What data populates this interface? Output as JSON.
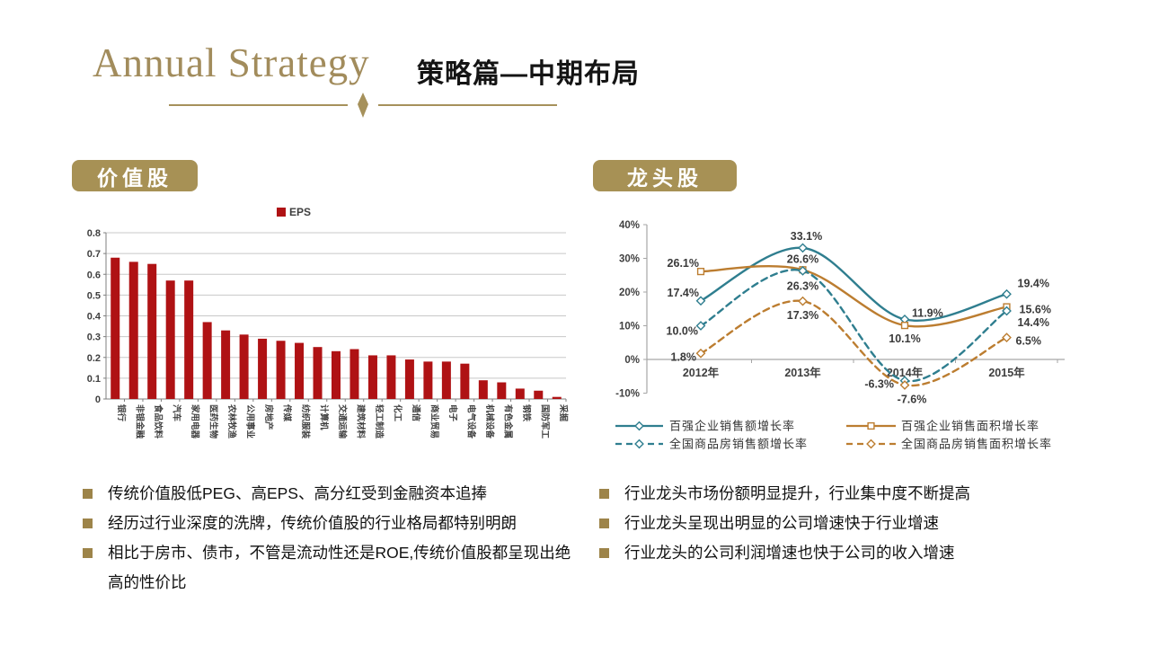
{
  "slide": {
    "title_en": "Annual Strategy",
    "title_zh": "策略篇—中期布局"
  },
  "sections": {
    "value": {
      "badge": "价值股",
      "bullets": [
        "传统价值股低PEG、高EPS、高分红受到金融资本追捧",
        "经历过行业深度的洗牌，传统价值股的行业格局都特别明朗",
        "相比于房市、债市，不管是流动性还是ROE,传统价值股都呈现出绝高的性价比"
      ]
    },
    "leader": {
      "badge": "龙头股",
      "bullets": [
        "行业龙头市场份额明显提升，行业集中度不断提高",
        "行业龙头呈现出明显的公司增速快于行业增速",
        "行业龙头的公司利润增速也快于公司的收入增速"
      ]
    }
  },
  "chart_data": [
    {
      "type": "bar",
      "legend": "EPS",
      "categories": [
        "银行",
        "非银金融",
        "食品饮料",
        "汽车",
        "家用电器",
        "医药生物",
        "农林牧渔",
        "公用事业",
        "房地产",
        "传媒",
        "纺织服装",
        "计算机",
        "交通运输",
        "建筑材料",
        "轻工制造",
        "化工",
        "通信",
        "商业贸易",
        "电子",
        "电气设备",
        "机械设备",
        "有色金属",
        "钢铁",
        "国防军工",
        "采掘"
      ],
      "values": [
        0.68,
        0.66,
        0.65,
        0.57,
        0.57,
        0.37,
        0.33,
        0.31,
        0.29,
        0.28,
        0.27,
        0.25,
        0.23,
        0.24,
        0.21,
        0.21,
        0.19,
        0.18,
        0.18,
        0.17,
        0.09,
        0.08,
        0.05,
        0.04,
        0.01
      ],
      "ylim": [
        0,
        0.8
      ],
      "ytick_step": 0.1,
      "grid": "horizontal"
    },
    {
      "type": "line",
      "x": [
        "2012年",
        "2013年",
        "2014年",
        "2015年"
      ],
      "ylim": [
        -10,
        40
      ],
      "yticks": [
        40,
        30,
        20,
        10,
        0,
        -10
      ],
      "grid": "zero-line-only",
      "legend_position": "bottom",
      "series": [
        {
          "name": "百强企业销售额增长率",
          "values": [
            17.4,
            33.1,
            11.9,
            19.4
          ],
          "color": "teal",
          "dashed": false,
          "marker": "diamond"
        },
        {
          "name": "百强企业销售面积增长率",
          "values": [
            26.1,
            26.6,
            10.1,
            15.6
          ],
          "color": "orange",
          "dashed": false,
          "marker": "square"
        },
        {
          "name": "全国商品房销售额增长率",
          "values": [
            10.0,
            26.3,
            -6.3,
            14.4
          ],
          "color": "teal",
          "dashed": true,
          "marker": "diamond"
        },
        {
          "name": "全国商品房销售面积增长率",
          "values": [
            1.8,
            17.3,
            -7.6,
            6.5
          ],
          "color": "orange",
          "dashed": true,
          "marker": "diamond"
        }
      ]
    }
  ],
  "colors": {
    "gold": "#a79155",
    "gold_dark": "#9d8449",
    "title_gold": "#a28c5c",
    "bar_red": "#af1214",
    "teal": "#2f7e8f",
    "orange": "#bc7d30",
    "axis_gray": "#7f7f7f",
    "grid_gray": "#c8c8c8"
  }
}
